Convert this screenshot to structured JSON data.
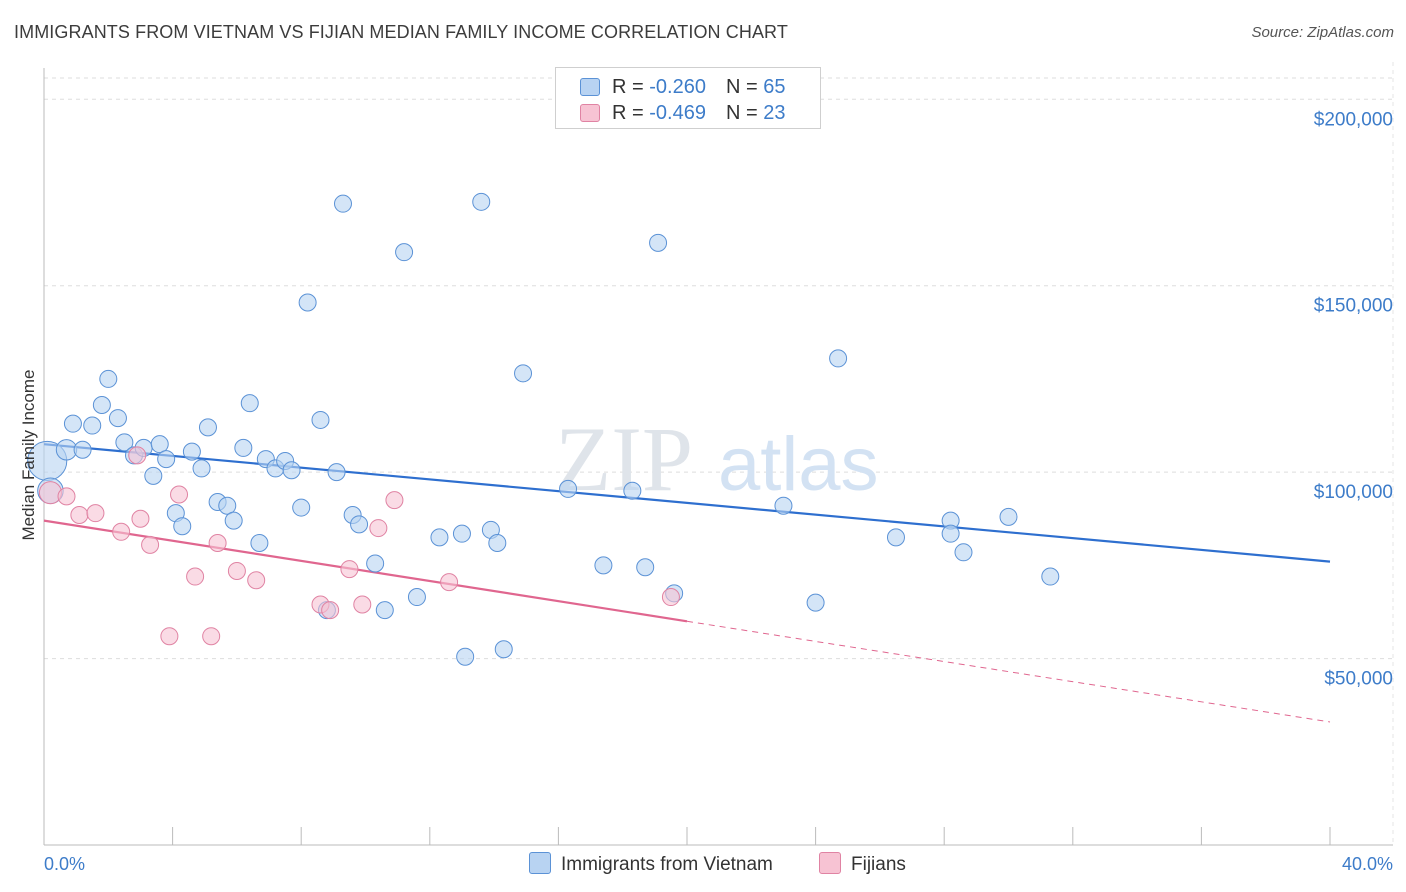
{
  "title": "IMMIGRANTS FROM VIETNAM VS FIJIAN MEDIAN FAMILY INCOME CORRELATION CHART",
  "source": "Source: ZipAtlas.com",
  "watermark": {
    "zip": "ZIP",
    "atlas": "atlas"
  },
  "legend": {
    "rows": [
      {
        "r_label": "R = ",
        "r_value": "-0.260",
        "n_label": "N = ",
        "n_value": "65"
      },
      {
        "r_label": "R = ",
        "r_value": "-0.469",
        "n_label": "N = ",
        "n_value": "23"
      }
    ]
  },
  "colors": {
    "vietnam_fill": "#b8d3f2",
    "vietnam_stroke": "#5b92d6",
    "vietnam_line": "#2e6fcf",
    "fiji_fill": "#f7c3d3",
    "fiji_stroke": "#e083a3",
    "fiji_line": "#e0668f",
    "tick_text": "#3d7cc9",
    "grid": "#dddddd"
  },
  "chart_data": {
    "type": "scatter",
    "ylabel": "Median Family Income",
    "xlabel": "",
    "xlim": [
      0,
      40
    ],
    "ylim": [
      0,
      210000
    ],
    "x_tick_labels": [
      "0.0%",
      "40.0%"
    ],
    "y_ticks": [
      {
        "value": 200000,
        "label": "$200,000"
      },
      {
        "value": 150000,
        "label": "$150,000"
      },
      {
        "value": 100000,
        "label": "$100,000"
      },
      {
        "value": 50000,
        "label": "$50,000"
      }
    ],
    "series": [
      {
        "name": "Immigrants from Vietnam",
        "points": [
          [
            0.1,
            103000,
            2.3
          ],
          [
            0.2,
            95000,
            1.5
          ],
          [
            0.7,
            106000,
            1.2
          ],
          [
            0.9,
            113000,
            1
          ],
          [
            1.2,
            106000,
            1
          ],
          [
            1.5,
            112500,
            1
          ],
          [
            1.8,
            118000,
            1
          ],
          [
            2.0,
            125000,
            1
          ],
          [
            2.3,
            114500,
            1
          ],
          [
            2.5,
            108000,
            1
          ],
          [
            2.8,
            104500,
            1
          ],
          [
            3.1,
            106500,
            1
          ],
          [
            3.4,
            99000,
            1
          ],
          [
            3.6,
            107500,
            1
          ],
          [
            3.8,
            103500,
            1
          ],
          [
            4.1,
            89000,
            1
          ],
          [
            4.3,
            85500,
            1
          ],
          [
            4.6,
            105500,
            1
          ],
          [
            4.9,
            101000,
            1
          ],
          [
            5.1,
            112000,
            1
          ],
          [
            5.4,
            92000,
            1
          ],
          [
            5.7,
            91000,
            1
          ],
          [
            5.9,
            87000,
            1
          ],
          [
            6.2,
            106500,
            1
          ],
          [
            6.4,
            118500,
            1
          ],
          [
            6.7,
            81000,
            1
          ],
          [
            6.9,
            103500,
            1
          ],
          [
            7.2,
            101000,
            1
          ],
          [
            7.5,
            103000,
            1
          ],
          [
            7.7,
            100500,
            1
          ],
          [
            8.0,
            90500,
            1
          ],
          [
            8.2,
            145500,
            1
          ],
          [
            8.6,
            114000,
            1
          ],
          [
            8.8,
            63000,
            1
          ],
          [
            9.1,
            100000,
            1
          ],
          [
            9.3,
            172000,
            1
          ],
          [
            9.6,
            88500,
            1
          ],
          [
            9.8,
            86000,
            1
          ],
          [
            10.3,
            75500,
            1
          ],
          [
            10.6,
            63000,
            1
          ],
          [
            11.2,
            159000,
            1
          ],
          [
            11.6,
            66500,
            1
          ],
          [
            12.3,
            82500,
            1
          ],
          [
            13.0,
            83500,
            1
          ],
          [
            13.1,
            50500,
            1
          ],
          [
            13.6,
            172500,
            1
          ],
          [
            13.9,
            84500,
            1
          ],
          [
            14.1,
            81000,
            1
          ],
          [
            14.3,
            52500,
            1
          ],
          [
            14.9,
            126500,
            1
          ],
          [
            16.3,
            95500,
            1
          ],
          [
            17.4,
            75000,
            1
          ],
          [
            18.3,
            95000,
            1
          ],
          [
            18.7,
            74500,
            1
          ],
          [
            19.1,
            161500,
            1
          ],
          [
            19.6,
            67500,
            1
          ],
          [
            23.0,
            91000,
            1
          ],
          [
            24.0,
            65000,
            1
          ],
          [
            24.7,
            130500,
            1
          ],
          [
            26.5,
            82500,
            1
          ],
          [
            28.2,
            87000,
            1
          ],
          [
            28.2,
            83500,
            1
          ],
          [
            28.6,
            78500,
            1
          ],
          [
            30.0,
            88000,
            1
          ],
          [
            31.3,
            72000,
            1
          ]
        ],
        "trend": {
          "x0": 0,
          "y0": 107500,
          "x1": 40,
          "y1": 76000
        }
      },
      {
        "name": "Fijians",
        "points": [
          [
            0.2,
            94500,
            1.3
          ],
          [
            0.7,
            93500,
            1
          ],
          [
            1.1,
            88500,
            1
          ],
          [
            1.6,
            89000,
            1
          ],
          [
            2.4,
            84000,
            1
          ],
          [
            2.9,
            104500,
            1
          ],
          [
            3.0,
            87500,
            1
          ],
          [
            3.3,
            80500,
            1
          ],
          [
            3.9,
            56000,
            1
          ],
          [
            4.2,
            94000,
            1
          ],
          [
            4.7,
            72000,
            1
          ],
          [
            5.2,
            56000,
            1
          ],
          [
            5.4,
            81000,
            1
          ],
          [
            6.0,
            73500,
            1
          ],
          [
            6.6,
            71000,
            1
          ],
          [
            8.6,
            64500,
            1
          ],
          [
            8.9,
            63000,
            1
          ],
          [
            9.5,
            74000,
            1
          ],
          [
            9.9,
            64500,
            1
          ],
          [
            10.4,
            85000,
            1
          ],
          [
            10.9,
            92500,
            1
          ],
          [
            12.6,
            70500,
            1
          ],
          [
            19.5,
            66500,
            1
          ]
        ],
        "trend": {
          "x0": 0,
          "y0": 87000,
          "x1": 20,
          "y1": 60000,
          "dash_x1": 40,
          "dash_y1": 33000
        }
      }
    ]
  },
  "bottom_legend": {
    "vietnam_label": "Immigrants from Vietnam",
    "fiji_label": "Fijians"
  }
}
